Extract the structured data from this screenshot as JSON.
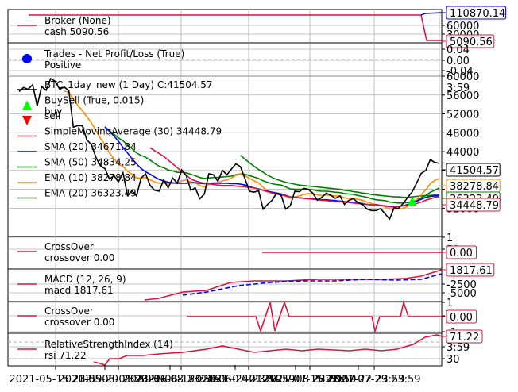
{
  "colors": {
    "crimson": "#dc143c",
    "blue": "#0000ff",
    "green": "#008000",
    "orange": "#ff8c00",
    "black": "#000000",
    "lime": "#00ff00",
    "red": "#ff0000",
    "grid": "#b0b0b0",
    "frame": "#000000"
  },
  "x_ticks": [
    "2021-05-15 23:59",
    "2021-06-01 23:59",
    "2021-06-15 23:59",
    "2021-07-01 23:59",
    "2021-07-15 23:59",
    "2021-07-29 23:59"
  ],
  "x_tick_overlap": [
    "2021-05-20 23:59",
    "2021-06-08 23:59",
    "2021-06-24 23:59",
    "2021-07-08 23:59",
    "2021-07-22 23:59"
  ],
  "panels": {
    "broker": {
      "legend": [
        {
          "line": "Broker (None)",
          "sub": "cash 5090.56",
          "color": "#dc143c",
          "marker": "line"
        }
      ],
      "y_ticks": [
        "60000",
        "30000"
      ],
      "value_tags": [
        {
          "text": "110870.14",
          "color": "#0000ff"
        },
        {
          "text": "5090.56",
          "color": "#dc143c"
        }
      ]
    },
    "trades": {
      "legend": [
        {
          "line": "Trades - Net Profit/Loss (True)",
          "sub": "Positive",
          "color": "#0000ff",
          "marker": "dot"
        }
      ],
      "y_ticks": [
        "0.04",
        "0.00",
        "-0.04"
      ],
      "stray_tick": "3:59"
    },
    "price": {
      "legend": [
        {
          "line": "BTC_1day_new (1 Day) C:41504.57",
          "sub": "",
          "color": "#000000",
          "marker": "line"
        },
        {
          "line": "BuySell (True, 0.015)",
          "sub": "buy",
          "color": "#00ff00",
          "marker": "up"
        },
        {
          "line": "sell",
          "sub": "",
          "color": "#ff0000",
          "marker": "down"
        },
        {
          "line": "SimpleMovingAverage (30) 34448.79",
          "sub": "",
          "color": "#dc143c",
          "marker": "line"
        },
        {
          "line": "SMA (20) 34671.84",
          "sub": "",
          "color": "#0000ff",
          "marker": "line"
        },
        {
          "line": "SMA (50) 34834.25",
          "sub": "",
          "color": "#008000",
          "marker": "line"
        },
        {
          "line": "EMA (10) 38278.84",
          "sub": "",
          "color": "#ff8c00",
          "marker": "line"
        },
        {
          "line": "EMA (20) 36323.49",
          "sub": "",
          "color": "#008000",
          "marker": "line"
        }
      ],
      "y_ticks": [
        "60000",
        "56000",
        "52000",
        "48000",
        "44000",
        "40000",
        "36000",
        "32000"
      ],
      "value_tags": [
        {
          "text": "41504.57",
          "color": "#000000"
        },
        {
          "text": "38278.84",
          "color": "#ff8c00"
        },
        {
          "text": "36323.49",
          "color": "#008000"
        },
        {
          "text": "34448.79",
          "color": "#dc143c"
        }
      ]
    },
    "crossover1": {
      "legend": [
        {
          "line": "CrossOver",
          "sub": "crossover 0.00",
          "color": "#dc143c",
          "marker": "line"
        }
      ],
      "y_ticks": [
        "1",
        "59"
      ],
      "value_tags": [
        {
          "text": "0.00",
          "color": "#dc143c"
        }
      ]
    },
    "macd": {
      "legend": [
        {
          "line": "MACD (12, 26, 9)",
          "sub": "macd 1817.61",
          "color": "#dc143c",
          "marker": "line"
        }
      ],
      "y_ticks": [
        "-2500",
        "-5000"
      ],
      "value_tags": [
        {
          "text": "1817.61",
          "color": "#dc143c"
        }
      ]
    },
    "crossover2": {
      "legend": [
        {
          "line": "CrossOver",
          "sub": "crossover 0.00",
          "color": "#dc143c",
          "marker": "line"
        }
      ],
      "y_ticks": [
        "1",
        "59",
        "-1"
      ],
      "value_tags": [
        {
          "text": "0.00",
          "color": "#dc143c"
        }
      ]
    },
    "rsi": {
      "legend": [
        {
          "line": "RelativeStrengthIndex (14)",
          "sub": "rsi 71.22",
          "color": "#dc143c",
          "marker": "line"
        }
      ],
      "y_ticks": [
        "30",
        "3:59"
      ],
      "value_tags": [
        {
          "text": "71.22",
          "color": "#dc143c"
        }
      ]
    }
  },
  "chart_data": {
    "type": "line",
    "x_range": [
      "2021-05-08",
      "2021-08-01"
    ],
    "price": {
      "name": "BTC_1day_new (1 Day) C:41504.57",
      "ylim": [
        26000,
        60000
      ],
      "close": [
        56700,
        57600,
        57200,
        58200,
        53700,
        57800,
        57000,
        59500,
        58900,
        57200,
        57700,
        56900,
        49200,
        49500,
        49500,
        46500,
        45500,
        42800,
        41000,
        40400,
        38200,
        38900,
        37600,
        39500,
        34700,
        35700,
        34600,
        38400,
        39300,
        36800,
        35800,
        35600,
        38000,
        36300,
        38400,
        37300,
        40100,
        38900,
        35800,
        36300,
        34000,
        35000,
        39300,
        39100,
        37700,
        40000,
        39100,
        40300,
        41400,
        40800,
        38200,
        35600,
        35400,
        35700,
        31800,
        32800,
        33700,
        35200,
        34700,
        31800,
        32500,
        35600,
        35500,
        36200,
        36000,
        35200,
        33700,
        34300,
        35200,
        34700,
        34100,
        34600,
        32800,
        33700,
        34000,
        33200,
        32800,
        31800,
        31500,
        31500,
        31900,
        30800,
        29700,
        32100,
        32000,
        33000,
        34300,
        35500,
        37400,
        39400,
        40000,
        42300,
        41700,
        41500
      ],
      "buy_index": 87,
      "sell_index": []
    },
    "sma30": [
      null,
      null,
      null,
      null,
      null,
      null,
      null,
      null,
      null,
      null,
      null,
      null,
      null,
      null,
      null,
      null,
      null,
      null,
      null,
      null,
      null,
      null,
      null,
      null,
      null,
      null,
      null,
      null,
      null,
      44800,
      44200,
      43600,
      43000,
      42200,
      41400,
      40600,
      39800,
      39000,
      38200,
      37800,
      37500,
      37300,
      37200,
      37000,
      36900,
      36800,
      36800,
      36800,
      36700,
      36600,
      36500,
      36400,
      36300,
      36100,
      35800,
      35500,
      35200,
      35000,
      34800,
      34600,
      34400,
      34300,
      34200,
      34100,
      34000,
      33900,
      33800,
      33700,
      33600,
      33500,
      33400,
      33400,
      33300,
      33200,
      33100,
      33000,
      32900,
      32800,
      32700,
      32600,
      32600,
      32500,
      32400,
      32400,
      32400,
      32500,
      32600,
      32800,
      33000,
      33300,
      33700,
      34000,
      34300,
      34450
    ],
    "sma20": [
      null,
      null,
      null,
      null,
      null,
      null,
      null,
      null,
      null,
      null,
      null,
      null,
      null,
      null,
      null,
      null,
      null,
      null,
      null,
      49200,
      48300,
      47300,
      46200,
      44900,
      43700,
      42500,
      41400,
      40400,
      39700,
      39200,
      38600,
      38100,
      37800,
      37500,
      37400,
      37300,
      37300,
      37300,
      37400,
      37400,
      37300,
      37200,
      37200,
      37300,
      37300,
      37300,
      37300,
      37200,
      37200,
      37100,
      36900,
      36600,
      36300,
      36100,
      35800,
      35600,
      35400,
      35200,
      35000,
      34700,
      34400,
      34300,
      34200,
      34100,
      34000,
      34000,
      33900,
      33800,
      33800,
      33700,
      33600,
      33500,
      33400,
      33300,
      33200,
      33100,
      33000,
      32800,
      32700,
      32700,
      32600,
      32500,
      32300,
      32300,
      32400,
      32500,
      32800,
      33100,
      33500,
      33900,
      34300,
      34500,
      34600,
      34672
    ],
    "sma50": [
      null,
      null,
      null,
      null,
      null,
      null,
      null,
      null,
      null,
      null,
      null,
      null,
      null,
      null,
      null,
      null,
      null,
      null,
      null,
      null,
      null,
      null,
      null,
      null,
      null,
      null,
      null,
      null,
      null,
      null,
      null,
      null,
      null,
      null,
      null,
      null,
      null,
      null,
      null,
      null,
      null,
      null,
      null,
      null,
      null,
      null,
      null,
      null,
      null,
      43200,
      42400,
      41600,
      40900,
      40200,
      39600,
      39000,
      38500,
      38100,
      37800,
      37500,
      37300,
      37100,
      36900,
      36800,
      36700,
      36600,
      36500,
      36400,
      36300,
      36200,
      36100,
      36000,
      35800,
      35700,
      35500,
      35400,
      35200,
      35100,
      34900,
      34800,
      34700,
      34600,
      34500,
      34400,
      34400,
      34300,
      34300,
      34400,
      34500,
      34600,
      34700,
      34700,
      34800,
      34834
    ],
    "ema10": [
      null,
      null,
      null,
      null,
      null,
      null,
      null,
      null,
      null,
      null,
      56800,
      56600,
      55200,
      53800,
      52700,
      51400,
      50100,
      48500,
      46800,
      45400,
      43700,
      42500,
      41300,
      40900,
      39800,
      39200,
      38400,
      38400,
      38500,
      38000,
      37600,
      37300,
      37300,
      37100,
      37300,
      37300,
      37800,
      38000,
      37600,
      37400,
      36800,
      36500,
      37000,
      37400,
      37400,
      37800,
      38000,
      38400,
      39000,
      39300,
      38900,
      38300,
      37800,
      37400,
      36400,
      35700,
      35300,
      35200,
      35100,
      34500,
      34100,
      34400,
      34600,
      34900,
      35100,
      35100,
      34800,
      34700,
      34800,
      34700,
      34600,
      34600,
      34200,
      34100,
      34100,
      33900,
      33700,
      33300,
      33000,
      32800,
      32600,
      32300,
      31800,
      31800,
      31800,
      32000,
      32400,
      33000,
      33800,
      34900,
      35900,
      37200,
      37900,
      38279
    ],
    "ema20": [
      null,
      null,
      null,
      null,
      null,
      null,
      null,
      null,
      null,
      null,
      null,
      null,
      null,
      null,
      null,
      null,
      null,
      null,
      null,
      49300,
      48400,
      47700,
      46900,
      46300,
      45400,
      44600,
      43700,
      43200,
      42800,
      42200,
      41500,
      40900,
      40600,
      40100,
      39900,
      39600,
      39600,
      39500,
      39200,
      38900,
      38500,
      38300,
      38400,
      38500,
      38500,
      38600,
      38700,
      38800,
      39100,
      39300,
      39200,
      38900,
      38600,
      38300,
      37800,
      37500,
      37200,
      37000,
      36900,
      36500,
      36100,
      36000,
      36000,
      36000,
      36000,
      35900,
      35700,
      35600,
      35600,
      35500,
      35400,
      35300,
      35100,
      35000,
      34900,
      34700,
      34500,
      34300,
      34000,
      33800,
      33700,
      33600,
      33300,
      33200,
      33100,
      33100,
      33200,
      33400,
      33700,
      34200,
      34700,
      35400,
      35800,
      36323
    ],
    "broker_value": {
      "ylim": [
        0,
        120000
      ],
      "cash_final": 5090.56,
      "value_final": 110870.14
    },
    "crossover1": {
      "ylim": [
        -1,
        1
      ],
      "values_constant": 0.0
    },
    "macd": {
      "ylim": [
        -6000,
        2200
      ],
      "macd_final": 1817.61
    },
    "crossover2": {
      "ylim": [
        -1.2,
        1.2
      ],
      "spike_indices": [
        60,
        63,
        79
      ],
      "dip_indices": [
        58,
        82
      ]
    },
    "rsi": {
      "ylim": [
        20,
        80
      ],
      "rsi_final": 71.22
    }
  }
}
